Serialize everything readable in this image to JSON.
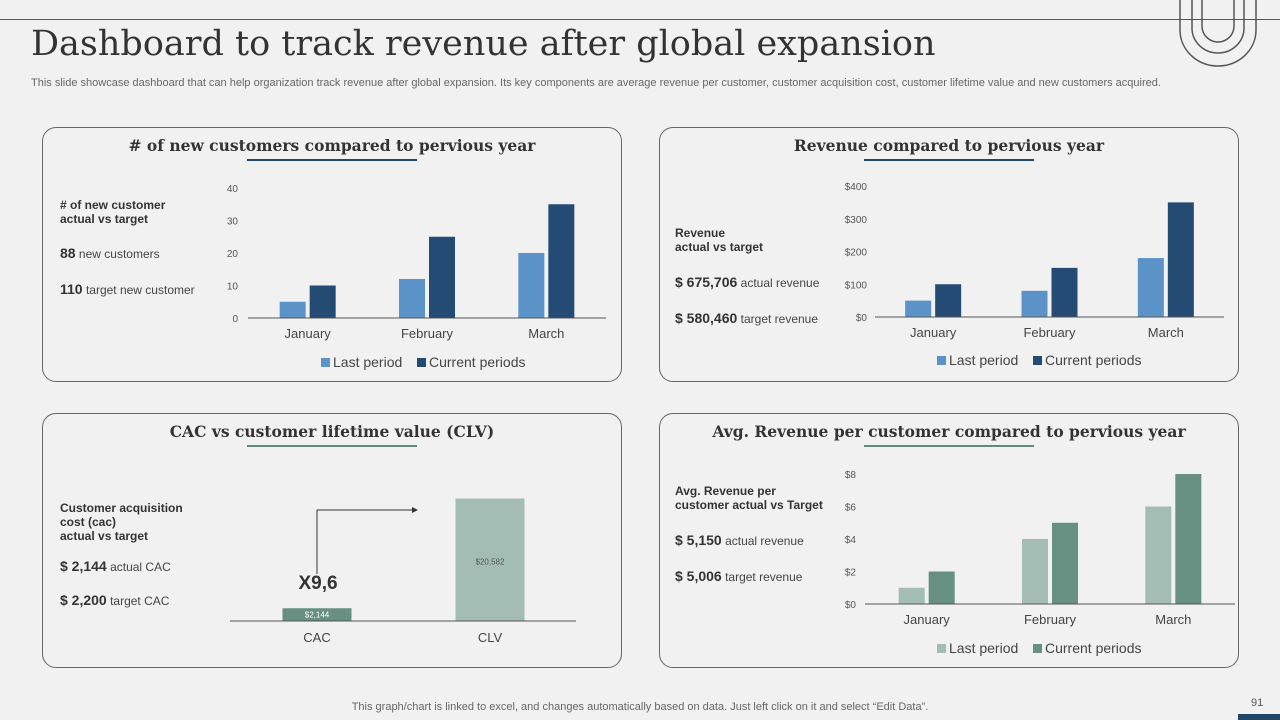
{
  "header": {
    "title": "Dashboard to track revenue after global expansion",
    "subtitle": "This slide showcase dashboard that can help organization track revenue after global expansion. Its key components are average revenue per customer, customer acquisition cost, customer lifetime value and new customers acquired."
  },
  "colors": {
    "light_blue": "#5b93c9",
    "dark_blue": "#234b73",
    "light_green": "#a3bdb4",
    "dark_green": "#678f82",
    "blue_underline": "#23476b",
    "green_underline": "#5f8a7c"
  },
  "panels": {
    "customers": {
      "title": "# of new customers compared to pervious year",
      "kpi_label": "# of new customer\nactual vs target",
      "kpi1_value": "88",
      "kpi1_text": "new customers",
      "kpi2_value": "110",
      "kpi2_text": "target new customer"
    },
    "revenue": {
      "title": "Revenue compared to pervious year",
      "kpi_label": "Revenue\nactual vs target",
      "kpi1_value": "$ 675,706",
      "kpi1_text": "actual revenue",
      "kpi2_value": "$ 580,460",
      "kpi2_text": "target revenue"
    },
    "cac": {
      "title": "CAC vs customer lifetime value (CLV)",
      "kpi_label": "Customer acquisition\ncost (cac)\nactual vs target",
      "kpi1_value": "$ 2,144",
      "kpi1_text": "actual CAC",
      "kpi2_value": "$ 2,200",
      "kpi2_text": "target CAC",
      "multiplier": "X9,6"
    },
    "avg": {
      "title": "Avg. Revenue per customer compared to pervious year",
      "kpi_label": "Avg. Revenue per\ncustomer actual vs Target",
      "kpi1_value": "$ 5,150",
      "kpi1_text": "actual revenue",
      "kpi2_value": "$ 5,006",
      "kpi2_text": "target revenue"
    }
  },
  "chart_data": [
    {
      "id": "customers",
      "type": "bar",
      "categories": [
        "January",
        "February",
        "March"
      ],
      "series": [
        {
          "name": "Last period",
          "values": [
            5,
            12,
            20
          ]
        },
        {
          "name": "Current periods",
          "values": [
            10,
            25,
            35
          ]
        }
      ],
      "yticks": [
        "0",
        "10",
        "20",
        "30",
        "40"
      ],
      "ylim": [
        0,
        40
      ]
    },
    {
      "id": "revenue",
      "type": "bar",
      "categories": [
        "January",
        "February",
        "March"
      ],
      "series": [
        {
          "name": "Last period",
          "values": [
            50,
            80,
            180
          ]
        },
        {
          "name": "Current periods",
          "values": [
            100,
            150,
            350
          ]
        }
      ],
      "yticks": [
        "$0",
        "$100",
        "$200",
        "$300",
        "$400"
      ],
      "ylim": [
        0,
        400
      ]
    },
    {
      "id": "cac",
      "type": "bar",
      "categories": [
        "CAC",
        "CLV"
      ],
      "values": [
        2144,
        20582
      ],
      "value_labels": [
        "$2,144",
        "$20,582"
      ],
      "ylim": [
        0,
        21000
      ]
    },
    {
      "id": "avg",
      "type": "bar",
      "categories": [
        "January",
        "February",
        "March"
      ],
      "series": [
        {
          "name": "Last period",
          "values": [
            1,
            4,
            6
          ]
        },
        {
          "name": "Current periods",
          "values": [
            2,
            5,
            8
          ]
        }
      ],
      "yticks": [
        "$0",
        "$2",
        "$4",
        "$6",
        "$8"
      ],
      "ylim": [
        0,
        8
      ]
    }
  ],
  "footer": {
    "note": "This graph/chart is linked to excel,  and changes automatically based on data. Just left click on it and select “Edit Data”.",
    "page_number": "91"
  }
}
